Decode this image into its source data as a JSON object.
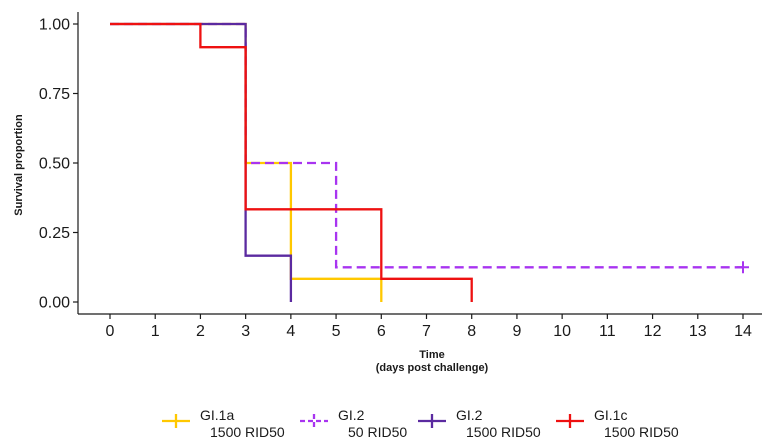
{
  "chart_data": {
    "type": "line",
    "subtype": "kaplan-meier step",
    "title": "",
    "xlabel": "Time",
    "xlabel_sub": "(days post challenge)",
    "ylabel": "Survival proportion",
    "xlim": [
      0,
      14
    ],
    "ylim": [
      0,
      1
    ],
    "x_ticks": [
      "0",
      "1",
      "2",
      "3",
      "4",
      "5",
      "6",
      "7",
      "8",
      "9",
      "10",
      "11",
      "12",
      "13",
      "14"
    ],
    "y_ticks": [
      "0.00",
      "0.25",
      "0.50",
      "0.75",
      "1.00"
    ],
    "grid": false,
    "legend_position": "bottom",
    "series": [
      {
        "name": "GI.1a",
        "name_line2": "1500 RID50",
        "color": "#ffc800",
        "dash": false,
        "points": [
          [
            0,
            1
          ],
          [
            3,
            1
          ],
          [
            3,
            0.5
          ],
          [
            4,
            0.5
          ],
          [
            4,
            0.0833
          ],
          [
            6,
            0.0833
          ],
          [
            6,
            0
          ]
        ],
        "censored": []
      },
      {
        "name": "GI.2",
        "name_line2": "50 RID50",
        "color": "#a834f0",
        "dash": true,
        "points": [
          [
            0,
            1
          ],
          [
            3,
            1
          ],
          [
            3,
            0.5
          ],
          [
            5,
            0.5
          ],
          [
            5,
            0.125
          ],
          [
            14,
            0.125
          ]
        ],
        "censored": [
          [
            14,
            0.125
          ]
        ]
      },
      {
        "name": "GI.2",
        "name_line2": "1500 RID50",
        "color": "#5b2aa0",
        "dash": false,
        "points": [
          [
            0,
            1
          ],
          [
            3,
            1
          ],
          [
            3,
            0.1667
          ],
          [
            4,
            0.1667
          ],
          [
            4,
            0
          ]
        ],
        "censored": []
      },
      {
        "name": "GI.1c",
        "name_line2": "1500 RID50",
        "color": "#ee1111",
        "dash": false,
        "points": [
          [
            0,
            1
          ],
          [
            2,
            1
          ],
          [
            2,
            0.9167
          ],
          [
            3,
            0.9167
          ],
          [
            3,
            0.3333
          ],
          [
            6,
            0.3333
          ],
          [
            6,
            0.0833
          ],
          [
            8,
            0.0833
          ],
          [
            8,
            0
          ]
        ],
        "censored": []
      }
    ]
  }
}
